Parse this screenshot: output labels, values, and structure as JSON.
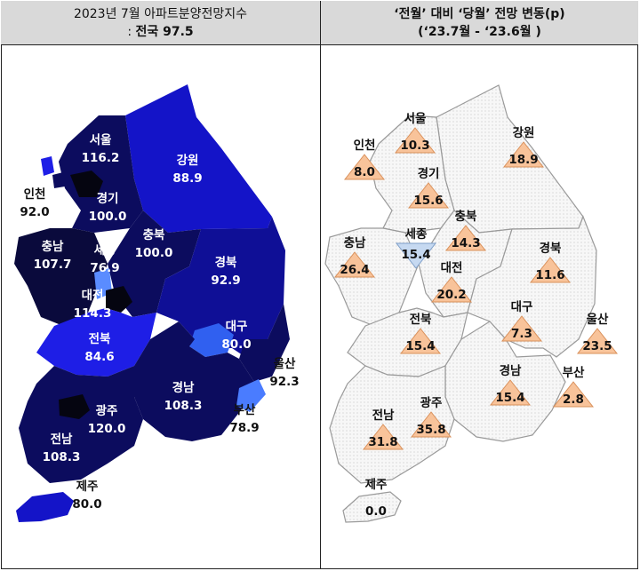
{
  "left": {
    "title_line1": "2023년  7월  아파트분양전망지수",
    "title_prefix": ": ",
    "title_line2": "전국  97.5"
  },
  "right": {
    "title_line1": "‘전월’ 대비 ‘당월’ 전망 변동(p)",
    "title_line2": "(‘23.7월  -  ‘23.6월 )"
  },
  "regions": [
    {
      "id": "seoul",
      "name": "서울",
      "index": "116.2",
      "change": "10.3",
      "direction": "up"
    },
    {
      "id": "incheon",
      "name": "인천",
      "index": "92.0",
      "change": "8.0",
      "direction": "up"
    },
    {
      "id": "gyeonggi",
      "name": "경기",
      "index": "100.0",
      "change": "15.6",
      "direction": "up"
    },
    {
      "id": "gangwon",
      "name": "강원",
      "index": "88.9",
      "change": "18.9",
      "direction": "up"
    },
    {
      "id": "chungnam",
      "name": "충남",
      "index": "107.7",
      "change": "26.4",
      "direction": "up"
    },
    {
      "id": "sejong",
      "name": "세종",
      "index": "76.9",
      "change": "15.4",
      "direction": "down"
    },
    {
      "id": "chungbuk",
      "name": "충북",
      "index": "100.0",
      "change": "14.3",
      "direction": "up"
    },
    {
      "id": "daejeon",
      "name": "대전",
      "index": "114.3",
      "change": "20.2",
      "direction": "up"
    },
    {
      "id": "gyeongbuk",
      "name": "경북",
      "index": "92.9",
      "change": "11.6",
      "direction": "up"
    },
    {
      "id": "jeonbuk",
      "name": "전북",
      "index": "84.6",
      "change": "15.4",
      "direction": "up"
    },
    {
      "id": "daegu",
      "name": "대구",
      "index": "80.0",
      "change": "7.3",
      "direction": "up"
    },
    {
      "id": "ulsan",
      "name": "울산",
      "index": "92.3",
      "change": "23.5",
      "direction": "up"
    },
    {
      "id": "gyeongnam",
      "name": "경남",
      "index": "108.3",
      "change": "15.4",
      "direction": "up"
    },
    {
      "id": "busan",
      "name": "부산",
      "index": "78.9",
      "change": "2.8",
      "direction": "up"
    },
    {
      "id": "gwangju",
      "name": "광주",
      "index": "120.0",
      "change": "35.8",
      "direction": "up"
    },
    {
      "id": "jeonnam",
      "name": "전남",
      "index": "108.3",
      "change": "31.8",
      "direction": "up"
    },
    {
      "id": "jeju",
      "name": "제주",
      "index": "80.0",
      "change": "0.0",
      "direction": "flat"
    }
  ],
  "colors": {
    "very_high": "#0a0a3c",
    "high": "#0c0c5e",
    "mid": "#0f0f96",
    "low": "#1e1ee6",
    "lowest": "#5a8cff",
    "up_marker": "#f8c39a",
    "down_marker": "#c6d9f1",
    "map_light": "#f4f4f4"
  }
}
